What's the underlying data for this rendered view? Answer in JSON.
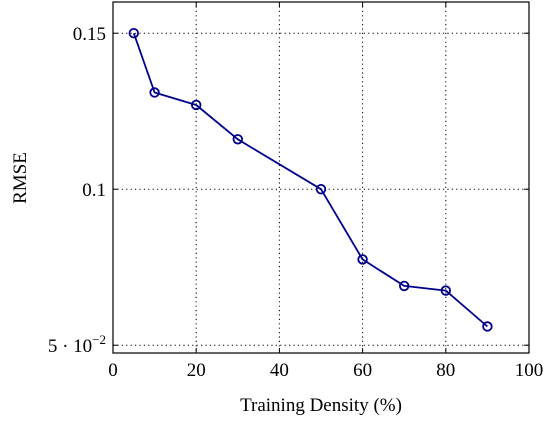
{
  "chart_data": {
    "type": "line",
    "xlabel": "Training Density (%)",
    "ylabel": "RMSE",
    "xlim": [
      0,
      100
    ],
    "ylim": [
      0.0475,
      0.16
    ],
    "x_ticks": [
      0,
      20,
      40,
      60,
      80,
      100
    ],
    "x_tick_labels": [
      "0",
      "20",
      "40",
      "60",
      "80",
      "100"
    ],
    "y_ticks": [
      0.05,
      0.1,
      0.15
    ],
    "y_tick_labels": [
      "5 · 10",
      "0.1",
      "0.15"
    ],
    "y_tick_exponent": "−2",
    "grid": true,
    "grid_style": "dotted",
    "legend": "none",
    "series": [
      {
        "color": "#00008b",
        "marker": "open-circle",
        "x": [
          5,
          10,
          20,
          30,
          50,
          60,
          70,
          80,
          90
        ],
        "y": [
          0.15,
          0.131,
          0.127,
          0.116,
          0.1,
          0.0775,
          0.069,
          0.0675,
          0.056
        ]
      }
    ]
  }
}
